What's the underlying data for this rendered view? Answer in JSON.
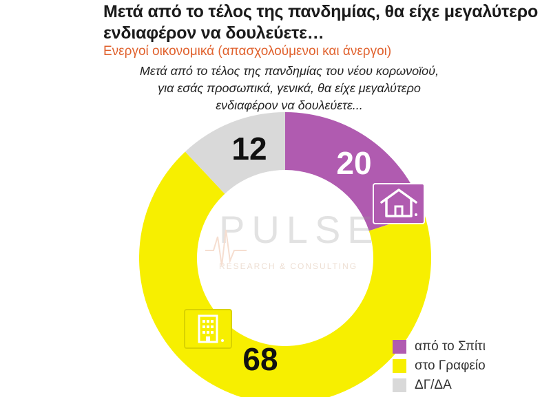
{
  "header": {
    "title": "Μετά από το τέλος της πανδημίας, θα είχε μεγαλύτερο ενδιαφέρον να δουλεύετε…",
    "subtitle": "Ενεργοί οικονομικά  (απασχολούμενοι και άνεργοι)",
    "question": "Μετά από το τέλος της πανδημίας του νέου κορωνοϊού, για εσάς προσωπικά, γενικά, θα είχε μεγαλύτερο ενδιαφέρον να δουλεύετε..."
  },
  "watermark": {
    "logo": "PULSE",
    "tagline": "RESEARCH & CONSULTING"
  },
  "chart_data": {
    "type": "pie",
    "variant": "donut",
    "title": "",
    "slices": [
      {
        "label": "από το Σπίτι",
        "value": 20,
        "color": "#b05bb0",
        "data_label": "20",
        "label_color": "#ffffff",
        "icon": "house-icon"
      },
      {
        "label": "στο Γραφείο",
        "value": 68,
        "color": "#f7ef00",
        "data_label": "68",
        "label_color": "#111111",
        "icon": "office-building-icon"
      },
      {
        "label": "ΔΓ/ΔΑ",
        "value": 12,
        "color": "#d9d9d9",
        "data_label": "12",
        "label_color": "#111111"
      }
    ],
    "start_angle_deg": 0,
    "direction": "clockwise",
    "legend_position": "bottom-right"
  }
}
